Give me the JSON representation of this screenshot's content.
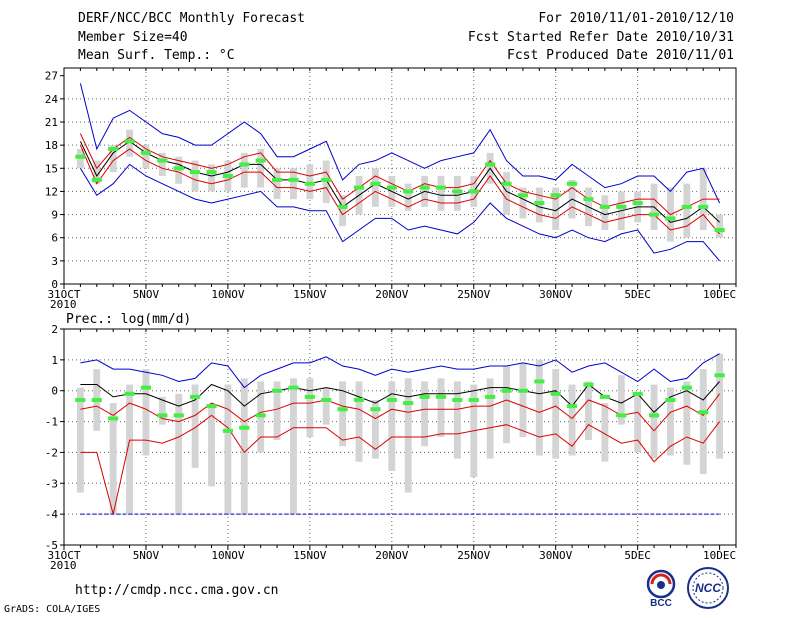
{
  "header": {
    "title_line1": "DERF/NCC/BCC Monthly Forecast",
    "title_line2": "Member Size=40",
    "title_line3": "Mean Surf. Temp.: °C",
    "right_line1": "For 2010/11/01-2010/12/10",
    "right_line2": "Fcst Started Refer Date 2010/10/31",
    "right_line3": "Fcst Produced Date 2010/11/01"
  },
  "footer": {
    "url": "http://cmdp.ncc.cma.gov.cn",
    "grads_label": "GrADS: COLA/IGES",
    "logo_bcc": "BCC",
    "logo_ncc": "NCC"
  },
  "colors": {
    "envelope": "#0000cc",
    "mean": "#000000",
    "quartile": "#dd0000",
    "obs": "#44ee44",
    "bar": "#d4d4d4",
    "grid": "#666666"
  },
  "chart_data": [
    {
      "type": "line",
      "title": "Mean Surf. Temp.: °C",
      "x_labels": [
        "31OCT\n2010",
        "5NOV",
        "10NOV",
        "15NOV",
        "20NOV",
        "25NOV",
        "30NOV",
        "5DEC",
        "10DEC"
      ],
      "x_label_days": [
        0,
        5,
        10,
        15,
        20,
        25,
        30,
        35,
        40
      ],
      "days": [
        1,
        2,
        3,
        4,
        5,
        6,
        7,
        8,
        9,
        10,
        11,
        12,
        13,
        14,
        15,
        16,
        17,
        18,
        19,
        20,
        21,
        22,
        23,
        24,
        25,
        26,
        27,
        28,
        29,
        30,
        31,
        32,
        33,
        34,
        35,
        36,
        37,
        38,
        39,
        40
      ],
      "ylim": [
        0,
        28
      ],
      "yticks": [
        0,
        3,
        6,
        9,
        12,
        15,
        18,
        21,
        24,
        27
      ],
      "series": [
        {
          "name": "max",
          "color": "#0000cc",
          "values": [
            26,
            17.5,
            21.5,
            22.5,
            21,
            19.5,
            19,
            18,
            18,
            19.5,
            21,
            19.5,
            16.5,
            16.5,
            17.5,
            18.5,
            13.5,
            15.5,
            16,
            17,
            16,
            15,
            16,
            16.5,
            17,
            20,
            16,
            14,
            14,
            13.5,
            15.5,
            14,
            12.5,
            13,
            14,
            14,
            12,
            14.5,
            15,
            10.5
          ]
        },
        {
          "name": "upper",
          "color": "#dd0000",
          "values": [
            19.5,
            15,
            17.5,
            19,
            17.5,
            16.5,
            16,
            15.5,
            15,
            15.5,
            16.5,
            17,
            14.5,
            14.5,
            14,
            14.5,
            11,
            12.5,
            14,
            13,
            12,
            13,
            12.5,
            12.5,
            13,
            16,
            13,
            12,
            11.5,
            11,
            12.5,
            11,
            10,
            10.5,
            11,
            11,
            9,
            10,
            11,
            11
          ]
        },
        {
          "name": "mean",
          "color": "#000000",
          "values": [
            18.5,
            14,
            17,
            18.5,
            17,
            16,
            15.5,
            14.5,
            14,
            14.5,
            15.5,
            15.5,
            13.5,
            13.5,
            13,
            13.5,
            10,
            11.5,
            13,
            12,
            11,
            12,
            11.5,
            11.5,
            12,
            15,
            12,
            11,
            10,
            9.5,
            11,
            10,
            9,
            9.5,
            10,
            10,
            8,
            8.5,
            10,
            8
          ]
        },
        {
          "name": "lower",
          "color": "#dd0000",
          "values": [
            18,
            13,
            16,
            17.5,
            16,
            15,
            14.5,
            13.5,
            13,
            13.5,
            14.5,
            14.5,
            12.5,
            12.5,
            12,
            12.5,
            9,
            10.5,
            12,
            11,
            10,
            11,
            10.5,
            10.5,
            11,
            14,
            11,
            10,
            9,
            8.5,
            10,
            9,
            8,
            8.5,
            9,
            9,
            7,
            7.5,
            9,
            6.5
          ]
        },
        {
          "name": "min",
          "color": "#0000cc",
          "values": [
            15,
            11.5,
            13,
            15.5,
            14,
            13,
            12,
            11,
            10.5,
            11,
            11.5,
            12,
            10,
            10,
            9.5,
            9.5,
            5.5,
            7,
            8.5,
            8.5,
            7,
            7.5,
            7,
            6.5,
            8,
            10.5,
            8.5,
            7.5,
            6.5,
            6,
            7,
            6,
            5.5,
            6.5,
            7,
            4,
            4.5,
            5.5,
            5.5,
            3
          ]
        }
      ],
      "bars_low": [
        15,
        13,
        14.5,
        16.5,
        15,
        14,
        13,
        12,
        12,
        12,
        12.5,
        12.5,
        11,
        11,
        11,
        10.5,
        7.5,
        9,
        10,
        10,
        9.5,
        10,
        9.5,
        9.5,
        10,
        13,
        9,
        8.5,
        8,
        7,
        8.5,
        7.5,
        7,
        7,
        8,
        7,
        5.5,
        6,
        7,
        6
      ],
      "bars_high": [
        17.5,
        16,
        18,
        20,
        18,
        17,
        16.5,
        16,
        15.5,
        16,
        17,
        17.5,
        15,
        15,
        15.5,
        16,
        11.5,
        14,
        15,
        14,
        13,
        14,
        14,
        14,
        14,
        17,
        14.5,
        12.5,
        12.5,
        12.5,
        13.5,
        12.5,
        11.5,
        12,
        12,
        13,
        12.5,
        13,
        15,
        9
      ],
      "observed": [
        16.5,
        13.5,
        17.5,
        18.5,
        17,
        16,
        15,
        14.5,
        14.5,
        14,
        15.5,
        16,
        13.5,
        13.5,
        13,
        13.5,
        10,
        12.5,
        13,
        12.5,
        12,
        12.5,
        12.5,
        12,
        12,
        15.5,
        13,
        11.5,
        10.5,
        11.5,
        13,
        11,
        10,
        10,
        10.5,
        9,
        8.5,
        10,
        10,
        7
      ]
    },
    {
      "type": "line",
      "title": "Prec.: log(mm/d)",
      "x_labels": [
        "31OCT\n2010",
        "5NOV",
        "10NOV",
        "15NOV",
        "20NOV",
        "25NOV",
        "30NOV",
        "5DEC",
        "10DEC"
      ],
      "x_label_days": [
        0,
        5,
        10,
        15,
        20,
        25,
        30,
        35,
        40
      ],
      "days": [
        1,
        2,
        3,
        4,
        5,
        6,
        7,
        8,
        9,
        10,
        11,
        12,
        13,
        14,
        15,
        16,
        17,
        18,
        19,
        20,
        21,
        22,
        23,
        24,
        25,
        26,
        27,
        28,
        29,
        30,
        31,
        32,
        33,
        34,
        35,
        36,
        37,
        38,
        39,
        40
      ],
      "ylim": [
        -5,
        2
      ],
      "yticks": [
        -5,
        -4,
        -3,
        -2,
        -1,
        0,
        1,
        2
      ],
      "series": [
        {
          "name": "max",
          "color": "#0000cc",
          "values": [
            0.9,
            1,
            0.7,
            0.7,
            0.6,
            0.5,
            0.3,
            0.4,
            0.9,
            0.8,
            0.1,
            0.5,
            0.7,
            0.9,
            0.9,
            1.1,
            0.8,
            0.7,
            0.5,
            0.7,
            0.6,
            0.7,
            0.8,
            0.7,
            0.7,
            0.8,
            0.8,
            0.9,
            0.8,
            1,
            0.6,
            0.8,
            0.9,
            0.6,
            0.3,
            0.7,
            0.3,
            0.4,
            0.9,
            1.2
          ]
        },
        {
          "name": "upper",
          "color": "#000000",
          "values": [
            0.2,
            0.2,
            -0.2,
            -0.1,
            -0.1,
            -0.3,
            -0.5,
            -0.3,
            0.2,
            0,
            -0.5,
            -0.1,
            0,
            0.1,
            0,
            0.1,
            0,
            -0.2,
            -0.4,
            -0.1,
            -0.2,
            -0.1,
            -0.1,
            -0.1,
            0,
            0.1,
            0.1,
            0,
            -0.1,
            0,
            -0.5,
            0.2,
            -0.2,
            -0.4,
            -0.1,
            -0.7,
            -0.2,
            0,
            -0.3,
            0.3
          ]
        },
        {
          "name": "mean",
          "color": "#dd0000",
          "values": [
            -0.6,
            -0.5,
            -0.8,
            -0.4,
            -0.6,
            -0.9,
            -1,
            -0.8,
            -0.4,
            -0.6,
            -1,
            -0.7,
            -0.6,
            -0.4,
            -0.4,
            -0.3,
            -0.5,
            -0.6,
            -0.9,
            -0.6,
            -0.7,
            -0.6,
            -0.6,
            -0.6,
            -0.5,
            -0.5,
            -0.3,
            -0.5,
            -0.7,
            -0.5,
            -0.9,
            -0.3,
            -0.5,
            -0.8,
            -0.7,
            -1.3,
            -0.7,
            -0.5,
            -0.8,
            -0.1
          ]
        },
        {
          "name": "lower",
          "color": "#dd0000",
          "values": [
            -2,
            -2,
            -4,
            -1.6,
            -1.6,
            -1.7,
            -1.5,
            -1.2,
            -0.8,
            -1.2,
            -2,
            -1.5,
            -1.5,
            -1.2,
            -1.2,
            -1.2,
            -1.6,
            -1.5,
            -1.9,
            -1.5,
            -1.5,
            -1.5,
            -1.4,
            -1.4,
            -1.3,
            -1.2,
            -1.1,
            -1.3,
            -1.5,
            -1.4,
            -1.8,
            -1.1,
            -1.4,
            -1.7,
            -1.6,
            -2.3,
            -1.8,
            -1.5,
            -1.7,
            -1
          ]
        },
        {
          "name": "floor",
          "color": "#0000cc",
          "values": [
            -4,
            -4,
            -4,
            -4,
            -4,
            -4,
            -4,
            -4,
            -4,
            -4,
            -4,
            -4,
            -4,
            -4,
            -4,
            -4,
            -4,
            -4,
            -4,
            -4,
            -4,
            -4,
            -4,
            -4,
            -4,
            -4,
            -4,
            -4,
            -4,
            -4,
            -4,
            -4,
            -4,
            -4,
            -4,
            -4,
            -4,
            -4,
            -4,
            -4
          ]
        }
      ],
      "bars_low": [
        -3.3,
        -1.3,
        -4,
        -4,
        -2.1,
        -1.1,
        -4,
        -2.5,
        -3.1,
        -4,
        -4,
        -2,
        -1.6,
        -4,
        -1.5,
        -1.1,
        -1.8,
        -2.3,
        -2.2,
        -2.6,
        -3.3,
        -1.8,
        -1.5,
        -2.2,
        -2.8,
        -2.2,
        -1.7,
        -1.5,
        -2.1,
        -2.2,
        -2.1,
        -1.6,
        -2.3,
        -1.1,
        -2,
        -2.2,
        -2.1,
        -2.4,
        -2.7,
        -2.2
      ],
      "bars_high": [
        0.1,
        0.7,
        -0.4,
        0.2,
        0.7,
        -0.2,
        -0.1,
        0.2,
        -0.5,
        0.2,
        0.4,
        0.3,
        0.3,
        0.4,
        0.4,
        0.1,
        0.3,
        0.3,
        -0.3,
        0.3,
        0.4,
        0.3,
        0.4,
        0.3,
        0.2,
        0.4,
        0.8,
        0.9,
        1,
        0.7,
        0.2,
        0.3,
        -0.4,
        0.5,
        -0.1,
        0.2,
        0.1,
        0.3,
        0.7,
        1.2
      ],
      "observed": [
        -0.3,
        -0.3,
        -0.9,
        -0.1,
        0.1,
        -0.8,
        -0.8,
        -0.2,
        -0.5,
        -1.3,
        -1.2,
        -0.8,
        0,
        0.1,
        -0.2,
        -0.3,
        -0.6,
        -0.3,
        -0.6,
        -0.3,
        -0.4,
        -0.2,
        -0.2,
        -0.3,
        -0.3,
        -0.2,
        0,
        0,
        0.3,
        -0.1,
        -0.5,
        0.2,
        -0.2,
        -0.8,
        -0.1,
        -0.8,
        -0.3,
        0.1,
        -0.7,
        0.5
      ]
    }
  ]
}
